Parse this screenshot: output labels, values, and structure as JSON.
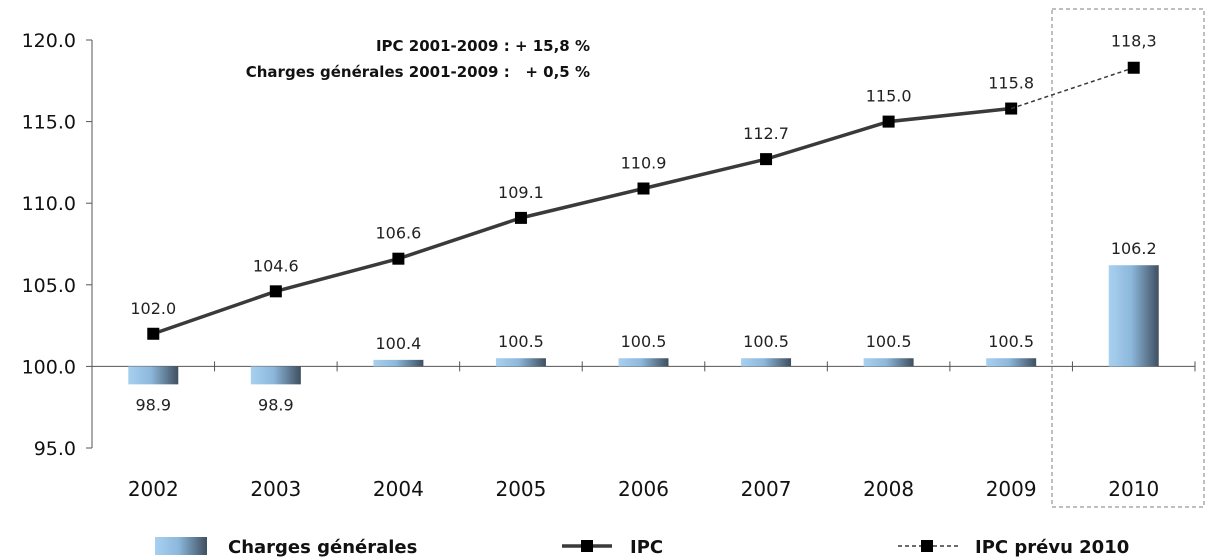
{
  "chart_data": {
    "type": "bar+line",
    "categories": [
      "2002",
      "2003",
      "2004",
      "2005",
      "2006",
      "2007",
      "2008",
      "2009",
      "2010"
    ],
    "ylim": [
      95,
      120
    ],
    "yticks": [
      "120.0",
      "115.0",
      "110.0",
      "105.0",
      "100.0",
      "95.0"
    ],
    "bar_baseline": 100,
    "series": [
      {
        "name": "Charges générales",
        "kind": "bar",
        "values": [
          98.9,
          98.9,
          100.4,
          100.5,
          100.5,
          100.5,
          100.5,
          100.5,
          106.2
        ],
        "labels": [
          "98.9",
          "98.9",
          "100.4",
          "100.5",
          "100.5",
          "100.5",
          "100.5",
          "100.5",
          "106.2"
        ]
      },
      {
        "name": "IPC",
        "kind": "line",
        "x": [
          "2002",
          "2003",
          "2004",
          "2005",
          "2006",
          "2007",
          "2008",
          "2009"
        ],
        "values": [
          102.0,
          104.6,
          106.6,
          109.1,
          110.9,
          112.7,
          115.0,
          115.8
        ],
        "labels": [
          "102.0",
          "104.6",
          "106.6",
          "109.1",
          "110.9",
          "112.7",
          "115.0",
          "115.8"
        ]
      },
      {
        "name": "IPC prévu 2010",
        "kind": "line-dashed",
        "x": [
          "2009",
          "2010"
        ],
        "values": [
          115.8,
          118.3
        ],
        "labels": [
          "",
          "118,3"
        ]
      }
    ],
    "annotations": [
      "IPC 2001-2009 : + 15,8 %",
      "Charges générales 2001-2009 :   + 0,5 %"
    ],
    "highlight_category": "2010",
    "grid": false,
    "legend_position": "bottom"
  },
  "colors": {
    "bar_light": "#a8d0f0",
    "bar_dark": "#3f4f60",
    "line": "#3a3a3a",
    "marker": "#000000",
    "axis": "#555555",
    "highlight_box": "#aaaaaa"
  }
}
